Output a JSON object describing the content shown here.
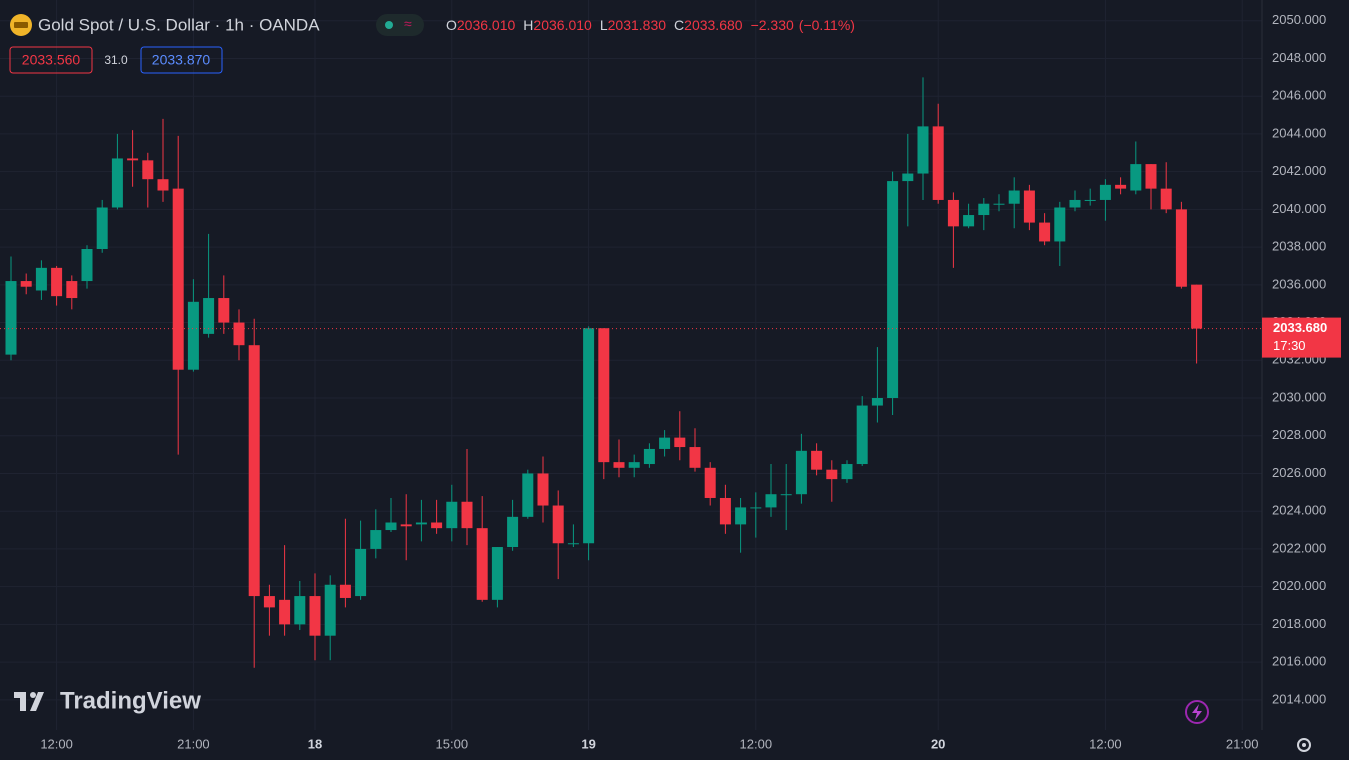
{
  "chart_data": {
    "type": "candlestick",
    "title": "Gold Spot / U.S. Dollar · 1h · OANDA",
    "header": {
      "ohlc": [
        {
          "key": "O",
          "value": 2036.01,
          "label": "2036.010"
        },
        {
          "key": "H",
          "value": 2036.01,
          "label": "2036.010"
        },
        {
          "key": "L",
          "value": 2031.83,
          "label": "2031.830"
        },
        {
          "key": "C",
          "value": 2033.68,
          "label": "2033.680"
        }
      ],
      "change": {
        "value": -2.33,
        "label": "−2.330"
      },
      "change_pct": {
        "value": -0.11,
        "label": "(−0.11%)"
      },
      "bid": {
        "value": 2033.56,
        "label": "2033.560"
      },
      "spread": {
        "value": 31,
        "label": "31.0"
      },
      "ask": {
        "value": 2033.87,
        "label": "2033.870"
      }
    },
    "last_price": {
      "value": 2033.68,
      "label": "2033.680"
    },
    "countdown": "17:30",
    "watermark": "TradingView",
    "up_color": "#089981",
    "down_color": "#f23645",
    "grid": true,
    "categories": [
      null,
      null,
      null,
      "12:00",
      null,
      null,
      null,
      null,
      null,
      null,
      null,
      null,
      "21:00",
      null,
      null,
      null,
      null,
      null,
      null,
      null,
      "18",
      null,
      null,
      null,
      null,
      null,
      null,
      null,
      null,
      "15:00",
      null,
      null,
      null,
      null,
      null,
      null,
      null,
      null,
      "19",
      null,
      null,
      null,
      null,
      null,
      null,
      null,
      null,
      null,
      null,
      "12:00",
      null,
      null,
      null,
      null,
      null,
      null,
      null,
      null,
      null,
      null,
      null,
      "20",
      null,
      null,
      null,
      null,
      null,
      null,
      null,
      null,
      null,
      null,
      "12:00",
      null,
      null,
      null,
      null,
      null,
      null,
      null,
      null,
      "21:00"
    ],
    "open": [
      2032.3,
      2036.2,
      2035.7,
      2036.9,
      2036.2,
      2036.2,
      2037.9,
      2040.1,
      2042.7,
      2042.6,
      2041.6,
      2041.1,
      2031.5,
      2033.4,
      2035.3,
      2034.0,
      2032.8,
      2019.5,
      2019.3,
      2018.0,
      2019.5,
      2017.4,
      2020.1,
      2019.5,
      2022.0,
      2023.0,
      2023.3,
      2023.3,
      2023.4,
      2023.1,
      2024.5,
      2023.1,
      2019.3,
      2022.1,
      2023.7,
      2026.0,
      2024.3,
      2022.3,
      2022.3,
      2033.7,
      2026.6,
      2026.3,
      2026.5,
      2027.3,
      2027.9,
      2027.4,
      2026.3,
      2024.7,
      2023.3,
      2024.2,
      2024.2,
      2024.9,
      2024.9,
      2027.2,
      2026.2,
      2025.7,
      2026.5,
      2029.6,
      2030.0,
      2041.5,
      2041.9,
      2044.4,
      2040.5,
      2039.1,
      2039.7,
      2040.3,
      2040.3,
      2041.0,
      2039.3,
      2038.3,
      2040.1,
      2040.5,
      2040.5,
      2041.3,
      2041.0,
      2042.4,
      2041.1,
      2040.0,
      2036.01,
      null,
      null,
      null
    ],
    "high": [
      2037.5,
      2036.6,
      2037.3,
      2037.0,
      2036.5,
      2038.1,
      2040.5,
      2044.0,
      2044.2,
      2043.0,
      2044.8,
      2043.9,
      2036.3,
      2038.7,
      2036.5,
      2034.7,
      2034.2,
      2020.1,
      2022.2,
      2020.3,
      2020.7,
      2020.6,
      2023.6,
      2023.5,
      2024.1,
      2024.7,
      2024.9,
      2024.6,
      2024.6,
      2025.4,
      2027.3,
      2024.8,
      2022.1,
      2024.6,
      2026.2,
      2026.9,
      2025.1,
      2023.3,
      2033.8,
      2033.7,
      2027.8,
      2027.0,
      2027.6,
      2028.3,
      2029.3,
      2028.4,
      2026.6,
      2025.4,
      2024.7,
      2025.0,
      2026.5,
      2026.5,
      2028.1,
      2027.6,
      2026.7,
      2026.7,
      2030.1,
      2032.7,
      2042.0,
      2044.0,
      2047.0,
      2045.6,
      2040.9,
      2040.3,
      2040.6,
      2040.8,
      2041.7,
      2041.3,
      2039.8,
      2040.4,
      2041.0,
      2041.1,
      2041.6,
      2041.7,
      2043.6,
      2042.4,
      2042.5,
      2040.4,
      2036.01,
      null,
      null,
      null
    ],
    "low": [
      2032.0,
      2035.5,
      2035.2,
      2034.9,
      2034.7,
      2035.8,
      2037.7,
      2040.0,
      2041.2,
      2040.1,
      2040.4,
      2027.0,
      2031.4,
      2033.2,
      2033.4,
      2032.0,
      2015.7,
      2017.4,
      2017.4,
      2017.7,
      2016.1,
      2016.1,
      2018.9,
      2019.3,
      2021.5,
      2022.9,
      2021.4,
      2022.4,
      2022.8,
      2022.4,
      2022.2,
      2019.2,
      2018.9,
      2021.9,
      2023.6,
      2023.4,
      2020.4,
      2022.1,
      2021.4,
      2025.7,
      2025.8,
      2025.8,
      2026.3,
      2026.9,
      2026.7,
      2026.1,
      2024.3,
      2022.8,
      2021.8,
      2022.6,
      2023.7,
      2023.0,
      2024.4,
      2025.9,
      2024.5,
      2025.5,
      2026.4,
      2028.7,
      2029.1,
      2039.1,
      2040.5,
      2040.3,
      2036.9,
      2039.0,
      2038.9,
      2039.9,
      2039.0,
      2038.9,
      2038.1,
      2037.0,
      2039.9,
      2040.2,
      2039.4,
      2040.8,
      2040.8,
      2040.0,
      2039.8,
      2035.8,
      2031.83,
      null,
      null,
      null
    ],
    "close": [
      2036.2,
      2035.9,
      2036.9,
      2035.4,
      2035.3,
      2037.9,
      2040.1,
      2042.7,
      2042.6,
      2041.6,
      2041.0,
      2031.5,
      2035.1,
      2035.3,
      2034.0,
      2032.8,
      2019.5,
      2018.9,
      2018.0,
      2019.5,
      2017.4,
      2020.1,
      2019.4,
      2022.0,
      2023.0,
      2023.4,
      2023.2,
      2023.4,
      2023.1,
      2024.5,
      2023.1,
      2019.3,
      2022.1,
      2023.7,
      2026.0,
      2024.3,
      2022.3,
      2022.3,
      2033.7,
      2026.6,
      2026.3,
      2026.6,
      2027.3,
      2027.9,
      2027.4,
      2026.3,
      2024.7,
      2023.3,
      2024.2,
      2024.2,
      2024.9,
      2024.9,
      2027.2,
      2026.2,
      2025.7,
      2026.5,
      2029.6,
      2030.0,
      2041.5,
      2041.9,
      2044.4,
      2040.5,
      2039.1,
      2039.7,
      2040.3,
      2040.3,
      2041.0,
      2039.3,
      2038.3,
      2040.1,
      2040.5,
      2040.5,
      2041.3,
      2041.1,
      2042.4,
      2041.1,
      2040.0,
      2035.9,
      2033.68,
      null,
      null,
      null
    ],
    "ylim": [
      2012.4,
      2051.1
    ],
    "yticks": [
      {
        "value": 2014,
        "label": "2014.000"
      },
      {
        "value": 2016,
        "label": "2016.000"
      },
      {
        "value": 2018,
        "label": "2018.000"
      },
      {
        "value": 2020,
        "label": "2020.000"
      },
      {
        "value": 2022,
        "label": "2022.000"
      },
      {
        "value": 2024,
        "label": "2024.000"
      },
      {
        "value": 2026,
        "label": "2026.000"
      },
      {
        "value": 2028,
        "label": "2028.000"
      },
      {
        "value": 2030,
        "label": "2030.000"
      },
      {
        "value": 2032,
        "label": "2032.000"
      },
      {
        "value": 2034,
        "label": "2034.000"
      },
      {
        "value": 2036,
        "label": "2036.000"
      },
      {
        "value": 2038,
        "label": "2038.000"
      },
      {
        "value": 2040,
        "label": "2040.000"
      },
      {
        "value": 2042,
        "label": "2042.000"
      },
      {
        "value": 2044,
        "label": "2044.000"
      },
      {
        "value": 2046,
        "label": "2046.000"
      },
      {
        "value": 2048,
        "label": "2048.000"
      },
      {
        "value": 2050,
        "label": "2050.000"
      }
    ]
  }
}
